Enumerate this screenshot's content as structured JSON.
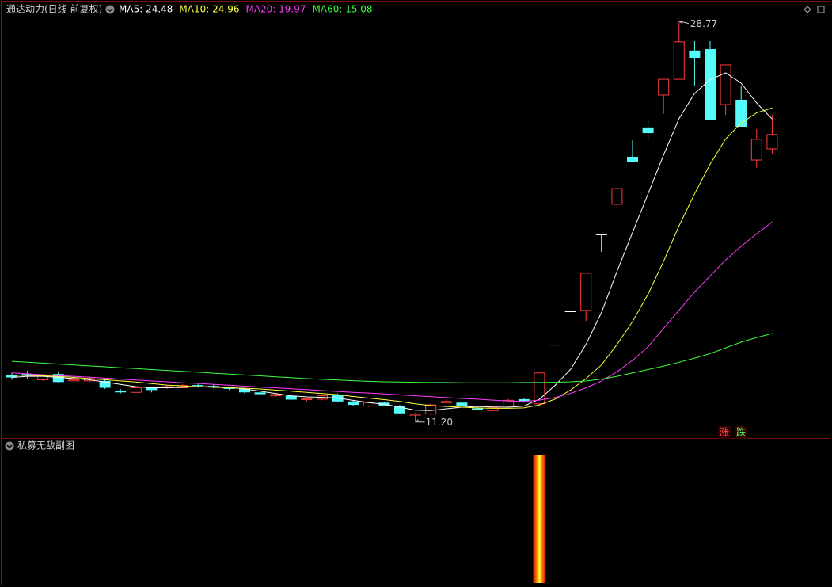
{
  "header": {
    "title": "通达动力(日线 前复权)"
  },
  "chart_data": {
    "type": "candlestick",
    "open": [
      13.25,
      13.3,
      13.05,
      13.3,
      13.0,
      13.0,
      13.0,
      12.55,
      12.5,
      12.7,
      12.7,
      12.7,
      12.82,
      12.78,
      12.72,
      12.65,
      12.5,
      12.35,
      12.35,
      12.18,
      12.2,
      12.4,
      12.1,
      11.9,
      12.05,
      11.9,
      11.5,
      11.55,
      12.05,
      12.05,
      11.8,
      11.7,
      11.9,
      12.2,
      12.0,
      14.59,
      16.05,
      16.09,
      19.42,
      20.74,
      22.82,
      24.11,
      25.53,
      26.22,
      27.48,
      27.54,
      25.11,
      25.32,
      22.68,
      23.17
    ],
    "high": [
      13.35,
      13.45,
      13.3,
      13.4,
      13.1,
      13.2,
      13.05,
      12.65,
      12.75,
      12.75,
      12.8,
      12.85,
      12.9,
      12.85,
      12.75,
      12.68,
      12.6,
      12.45,
      12.4,
      12.25,
      12.4,
      12.45,
      12.15,
      12.1,
      12.1,
      11.95,
      11.6,
      12.0,
      12.2,
      12.1,
      11.85,
      11.85,
      12.2,
      12.25,
      13.35,
      14.59,
      16.05,
      17.72,
      19.42,
      21.43,
      23.55,
      24.49,
      26.22,
      28.77,
      27.89,
      27.89,
      26.85,
      25.95,
      24.04,
      24.66
    ],
    "low": [
      13.05,
      13.1,
      13.0,
      12.9,
      12.7,
      12.95,
      12.65,
      12.45,
      12.5,
      12.5,
      12.65,
      12.7,
      12.7,
      12.68,
      12.6,
      12.45,
      12.35,
      12.3,
      12.15,
      12.1,
      12.15,
      12.05,
      11.9,
      11.85,
      11.9,
      11.55,
      11.2,
      11.5,
      12.0,
      11.88,
      11.7,
      11.68,
      11.85,
      12.05,
      11.95,
      14.59,
      16.05,
      15.63,
      18.66,
      20.5,
      22.61,
      23.52,
      24.7,
      26.22,
      25.95,
      24.42,
      24.66,
      24.14,
      22.34,
      22.96
    ],
    "close": [
      13.15,
      13.22,
      13.25,
      12.95,
      13.05,
      13.1,
      12.7,
      12.5,
      12.7,
      12.6,
      12.75,
      12.8,
      12.78,
      12.72,
      12.65,
      12.5,
      12.42,
      12.4,
      12.18,
      12.22,
      12.35,
      12.1,
      11.95,
      12.05,
      11.92,
      11.58,
      11.55,
      11.95,
      12.1,
      11.92,
      11.72,
      11.82,
      12.15,
      12.12,
      13.35,
      14.59,
      16.05,
      17.72,
      19.42,
      21.43,
      22.61,
      23.86,
      26.22,
      27.86,
      27.16,
      24.42,
      26.85,
      24.14,
      23.59,
      23.8
    ],
    "colors": {
      "up": "#ff3c3c",
      "down": "#54fcfc",
      "flat": "#ffffff"
    },
    "ylim": [
      10.6,
      29.0
    ],
    "max_label": {
      "value": 28.77,
      "label": "28.77"
    },
    "min_label": {
      "value": 11.2,
      "label": "11.20"
    },
    "series": [
      {
        "name": "MA5",
        "label": "MA5: 24.48",
        "color": "#ffffff",
        "values": [
          13.15,
          13.2,
          13.2,
          13.15,
          13.1,
          13.05,
          12.95,
          12.85,
          12.75,
          12.7,
          12.7,
          12.72,
          12.75,
          12.75,
          12.72,
          12.65,
          12.55,
          12.45,
          12.35,
          12.3,
          12.28,
          12.25,
          12.15,
          12.05,
          11.98,
          11.85,
          11.72,
          11.7,
          11.78,
          11.85,
          11.88,
          11.86,
          11.85,
          11.9,
          12.2,
          12.8,
          13.5,
          14.6,
          16.0,
          17.8,
          19.5,
          21.2,
          22.9,
          24.5,
          25.6,
          26.2,
          26.5,
          26.05,
          25.18,
          24.48
        ]
      },
      {
        "name": "MA10",
        "label": "MA10: 24.96",
        "color": "#ffff3c",
        "values": [
          13.25,
          13.25,
          13.22,
          13.2,
          13.15,
          13.1,
          13.05,
          13.0,
          12.95,
          12.88,
          12.82,
          12.78,
          12.75,
          12.72,
          12.7,
          12.68,
          12.65,
          12.6,
          12.55,
          12.5,
          12.45,
          12.4,
          12.32,
          12.25,
          12.18,
          12.1,
          12.0,
          11.92,
          11.88,
          11.85,
          11.82,
          11.8,
          11.8,
          11.82,
          11.95,
          12.2,
          12.6,
          13.1,
          13.7,
          14.6,
          15.6,
          16.8,
          18.24,
          19.8,
          21.2,
          22.5,
          23.6,
          24.3,
          24.75,
          24.96
        ]
      },
      {
        "name": "MA20",
        "label": "MA20: 19.97",
        "color": "#ff3cff",
        "values": [
          13.35,
          13.31,
          13.27,
          13.23,
          13.2,
          13.16,
          13.12,
          13.08,
          13.04,
          13.0,
          12.96,
          12.92,
          12.89,
          12.85,
          12.81,
          12.77,
          12.73,
          12.7,
          12.66,
          12.62,
          12.58,
          12.54,
          12.5,
          12.47,
          12.43,
          12.39,
          12.35,
          12.31,
          12.27,
          12.23,
          12.2,
          12.16,
          12.12,
          12.1,
          12.16,
          12.27,
          12.45,
          12.7,
          13.0,
          13.4,
          13.9,
          14.5,
          15.3,
          16.1,
          16.9,
          17.6,
          18.3,
          18.9,
          19.45,
          19.97
        ]
      },
      {
        "name": "MA60",
        "label": "MA60: 15.08",
        "color": "#3cff3c",
        "values": [
          13.86,
          13.82,
          13.78,
          13.74,
          13.7,
          13.66,
          13.62,
          13.58,
          13.54,
          13.5,
          13.46,
          13.42,
          13.38,
          13.34,
          13.3,
          13.26,
          13.22,
          13.18,
          13.14,
          13.1,
          13.07,
          13.04,
          13.01,
          12.98,
          12.96,
          12.95,
          12.94,
          12.93,
          12.93,
          12.92,
          12.92,
          12.92,
          12.92,
          12.93,
          12.93,
          12.94,
          12.96,
          13.0,
          13.08,
          13.2,
          13.35,
          13.5,
          13.65,
          13.82,
          14.0,
          14.2,
          14.45,
          14.7,
          14.9,
          15.08
        ]
      }
    ],
    "buttons": [
      "涨",
      "跌"
    ]
  },
  "sub_chart": {
    "type": "bar",
    "title": "私募无敌副图",
    "ylim": [
      0,
      1
    ],
    "values": [
      0,
      0,
      0,
      0,
      0,
      0,
      0,
      0,
      0,
      0,
      0,
      0,
      0,
      0,
      0,
      0,
      0,
      0,
      0,
      0,
      0,
      0,
      0,
      0,
      0,
      0,
      0,
      0,
      0,
      0,
      0,
      0,
      0,
      0,
      1,
      0,
      0,
      0,
      0,
      0,
      0,
      0,
      0,
      0,
      0,
      0,
      0,
      0,
      0,
      0
    ]
  }
}
